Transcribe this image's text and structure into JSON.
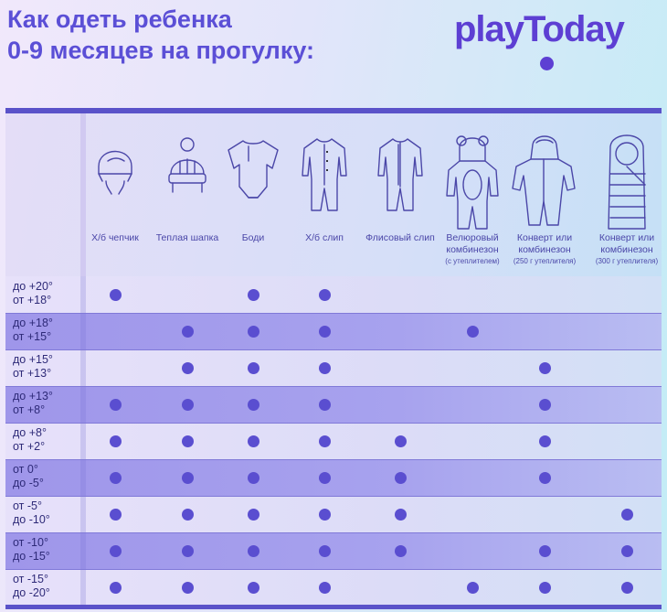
{
  "title": {
    "line1": "Как одеть ребенка",
    "line2": "0-9 месяцев на прогулку:"
  },
  "logo": {
    "text": "playToday"
  },
  "colors": {
    "title": "#5b4fd6",
    "accent": "#5a4ed0",
    "border": "#5a52c9"
  },
  "items": [
    {
      "icon": "bonnet-icon",
      "label": "Х/б чепчик",
      "sub": ""
    },
    {
      "icon": "warm-hat-icon",
      "label": "Теплая шапка",
      "sub": ""
    },
    {
      "icon": "bodysuit-icon",
      "label": "Боди",
      "sub": ""
    },
    {
      "icon": "cotton-sleepsuit-icon",
      "label": "Х/б слип",
      "sub": ""
    },
    {
      "icon": "fleece-sleepsuit-icon",
      "label": "Флисовый слип",
      "sub": ""
    },
    {
      "icon": "velour-jumpsuit-icon",
      "label": "Велюровый комбинезон",
      "sub": "(с утеплителем)"
    },
    {
      "icon": "winter-jumpsuit-icon",
      "label": "Конверт или комбинезон",
      "sub": "(250 г утеплителя)"
    },
    {
      "icon": "envelope-icon",
      "label": "Конверт или комбинезон",
      "sub": "(300 г утеплителя)"
    }
  ],
  "rows": [
    {
      "line1": "до +20°",
      "line2": "от +18°",
      "marks": [
        1,
        0,
        1,
        1,
        0,
        0,
        0,
        0
      ]
    },
    {
      "line1": "до +18°",
      "line2": "от +15°",
      "marks": [
        0,
        1,
        1,
        1,
        0,
        1,
        0,
        0
      ]
    },
    {
      "line1": "до +15°",
      "line2": "от +13°",
      "marks": [
        0,
        1,
        1,
        1,
        0,
        0,
        1,
        0
      ]
    },
    {
      "line1": "до +13°",
      "line2": "от +8°",
      "marks": [
        1,
        1,
        1,
        1,
        0,
        0,
        1,
        0
      ]
    },
    {
      "line1": "до +8°",
      "line2": "от +2°",
      "marks": [
        1,
        1,
        1,
        1,
        1,
        0,
        1,
        0
      ]
    },
    {
      "line1": "от 0°",
      "line2": "до -5°",
      "marks": [
        1,
        1,
        1,
        1,
        1,
        0,
        1,
        0
      ]
    },
    {
      "line1": "от -5°",
      "line2": "до -10°",
      "marks": [
        1,
        1,
        1,
        1,
        1,
        0,
        0,
        1
      ]
    },
    {
      "line1": "от -10°",
      "line2": "до -15°",
      "marks": [
        1,
        1,
        1,
        1,
        1,
        0,
        1,
        1
      ]
    },
    {
      "line1": "от -15°",
      "line2": "до -20°",
      "marks": [
        1,
        1,
        1,
        1,
        0,
        1,
        1,
        1
      ]
    }
  ]
}
